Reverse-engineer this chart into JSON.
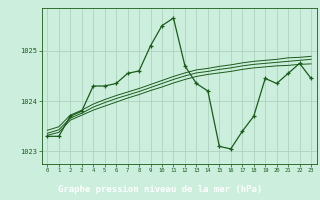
{
  "title": "",
  "xlabel": "Graphe pression niveau de la mer (hPa)",
  "background_color": "#cceedd",
  "grid_color": "#aaccbb",
  "line_color": "#1a5c1a",
  "label_bg_color": "#1a5c1a",
  "label_text_color": "#ffffff",
  "ylim": [
    1022.75,
    1025.85
  ],
  "yticks": [
    1023,
    1024,
    1025
  ],
  "xlim": [
    -0.5,
    23.5
  ],
  "xticks": [
    0,
    1,
    2,
    3,
    4,
    5,
    6,
    7,
    8,
    9,
    10,
    11,
    12,
    13,
    14,
    15,
    16,
    17,
    18,
    19,
    20,
    21,
    22,
    23
  ],
  "main_series": [
    1023.3,
    1023.3,
    1023.7,
    1023.8,
    1024.3,
    1024.3,
    1024.35,
    1024.55,
    1024.6,
    1025.1,
    1025.5,
    1025.65,
    1024.7,
    1024.35,
    1024.2,
    1023.1,
    1023.05,
    1023.4,
    1023.7,
    1024.45,
    1024.35,
    1024.55,
    1024.75,
    1024.45
  ],
  "trend1": [
    1023.32,
    1023.38,
    1023.62,
    1023.72,
    1023.82,
    1023.9,
    1023.98,
    1024.06,
    1024.13,
    1024.21,
    1024.28,
    1024.36,
    1024.43,
    1024.49,
    1024.53,
    1024.56,
    1024.59,
    1024.63,
    1024.66,
    1024.68,
    1024.7,
    1024.71,
    1024.73,
    1024.74
  ],
  "trend2": [
    1023.36,
    1023.43,
    1023.66,
    1023.76,
    1023.88,
    1023.97,
    1024.05,
    1024.12,
    1024.19,
    1024.27,
    1024.35,
    1024.43,
    1024.5,
    1024.56,
    1024.59,
    1024.63,
    1024.66,
    1024.7,
    1024.73,
    1024.75,
    1024.77,
    1024.79,
    1024.81,
    1024.83
  ],
  "trend3": [
    1023.42,
    1023.49,
    1023.72,
    1023.82,
    1023.94,
    1024.03,
    1024.11,
    1024.18,
    1024.25,
    1024.33,
    1024.41,
    1024.49,
    1024.56,
    1024.62,
    1024.65,
    1024.69,
    1024.72,
    1024.76,
    1024.79,
    1024.81,
    1024.83,
    1024.86,
    1024.87,
    1024.89
  ]
}
